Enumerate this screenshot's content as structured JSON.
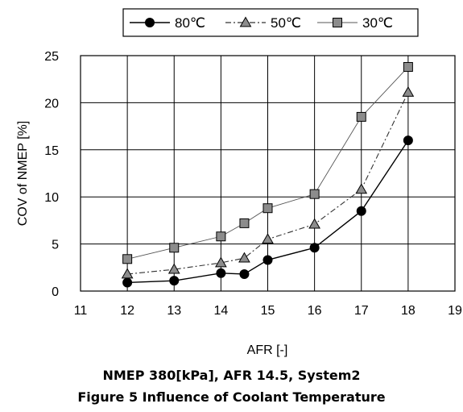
{
  "chart_data": {
    "type": "line",
    "xlabel": "AFR    [-]",
    "ylabel": "COV of NMEP [%]",
    "xlim": [
      11,
      19
    ],
    "ylim": [
      0,
      25
    ],
    "xticks": [
      11,
      12,
      13,
      14,
      15,
      16,
      17,
      18,
      19
    ],
    "yticks": [
      0,
      5,
      10,
      15,
      20,
      25
    ],
    "grid": true,
    "legend_position": "top",
    "series": [
      {
        "name": "80℃",
        "marker": "circle",
        "line_style": "solid",
        "color": "#000000",
        "marker_fill": "#000000",
        "x": [
          12,
          13,
          14,
          14.5,
          15,
          16,
          17,
          18
        ],
        "y": [
          0.9,
          1.1,
          1.9,
          1.8,
          3.3,
          4.6,
          8.5,
          16.0
        ]
      },
      {
        "name": "50℃",
        "marker": "triangle",
        "line_style": "dash-dot",
        "color": "#333333",
        "marker_fill": "#8c8c8c",
        "x": [
          12,
          13,
          14,
          14.5,
          15,
          16,
          17,
          18
        ],
        "y": [
          1.8,
          2.3,
          3.0,
          3.5,
          5.5,
          7.1,
          10.8,
          21.1
        ]
      },
      {
        "name": "30℃",
        "marker": "square",
        "line_style": "solid-thin",
        "color": "#555555",
        "marker_fill": "#8c8c8c",
        "x": [
          12,
          13,
          14,
          14.5,
          15,
          16,
          17,
          18
        ],
        "y": [
          3.4,
          4.6,
          5.8,
          7.2,
          8.8,
          10.3,
          18.5,
          23.8
        ]
      }
    ]
  },
  "captions": {
    "subtitle": "NMEP 380[kPa], AFR 14.5, System2",
    "figure": "Figure 5    Influence of Coolant Temperature"
  }
}
